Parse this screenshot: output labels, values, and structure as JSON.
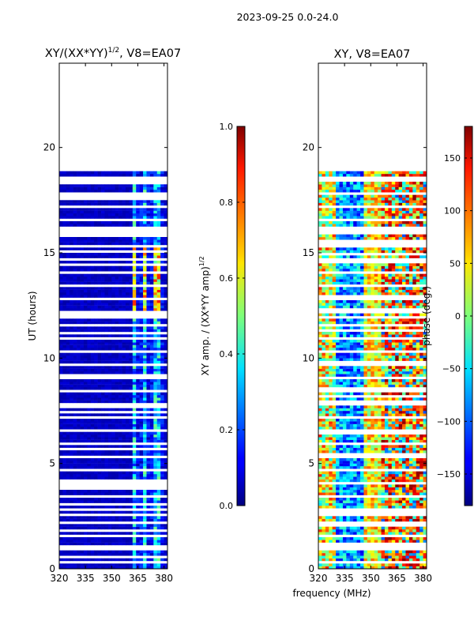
{
  "figure": {
    "suptitle": "2023-09-25 0.0-24.0",
    "xlabel": "frequency (MHz)"
  },
  "chart_data": [
    {
      "type": "heatmap",
      "title": "XY/(XX*YY)",
      "title_sup": "1/2",
      "title_suffix": ", V8=EA07",
      "xlabel": "frequency (MHz)",
      "ylabel": "UT (hours)",
      "xlim": [
        320,
        382
      ],
      "ylim": [
        0,
        24
      ],
      "xticks": [
        320,
        335,
        350,
        365,
        380
      ],
      "yticks": [
        0,
        5,
        10,
        15,
        20
      ],
      "colormap": "jet",
      "colorbar": {
        "label": "XY amp. / (XX*YY amp)",
        "label_sup": "1/2",
        "range": [
          0.0,
          1.0
        ],
        "ticks": [
          "0.0",
          "0.2",
          "0.4",
          "0.6",
          "0.8",
          "1.0"
        ]
      },
      "data_gaps_hours": [
        [
          22.4,
          24.0
        ],
        [
          19.1,
          22.4
        ],
        [
          18.4,
          18.6
        ],
        [
          16.0,
          16.2
        ],
        [
          0.9,
          1.1
        ]
      ],
      "value_summary": "mostly ~0.0-0.1 (dark blue) across band; brighter 0.2-0.5 streaks near 362-380 MHz; up to ~0.7-0.8 around 365-378 MHz between 12.5-15 h"
    },
    {
      "type": "heatmap",
      "title": "XY, V8=EA07",
      "xlabel": "frequency (MHz)",
      "ylabel": "",
      "xlim": [
        320,
        382
      ],
      "ylim": [
        0,
        24
      ],
      "xticks": [
        320,
        335,
        350,
        365,
        380
      ],
      "yticks": [
        0,
        5,
        10,
        15,
        20
      ],
      "colormap": "jet",
      "colorbar": {
        "label": "phase (deg.)",
        "range": [
          -180,
          180
        ],
        "ticks": [
          "−150",
          "−100",
          "−50",
          "0",
          "50",
          "100",
          "150"
        ]
      },
      "data_gaps_hours": [
        [
          22.4,
          24.0
        ],
        [
          19.1,
          22.4
        ],
        [
          18.4,
          18.6
        ],
        [
          16.0,
          16.2
        ],
        [
          0.9,
          1.1
        ]
      ],
      "value_summary": "phase noisy across full range -180 to 180 deg; blue band ~330-345 MHz, red/orange patches 355-380 MHz"
    }
  ]
}
